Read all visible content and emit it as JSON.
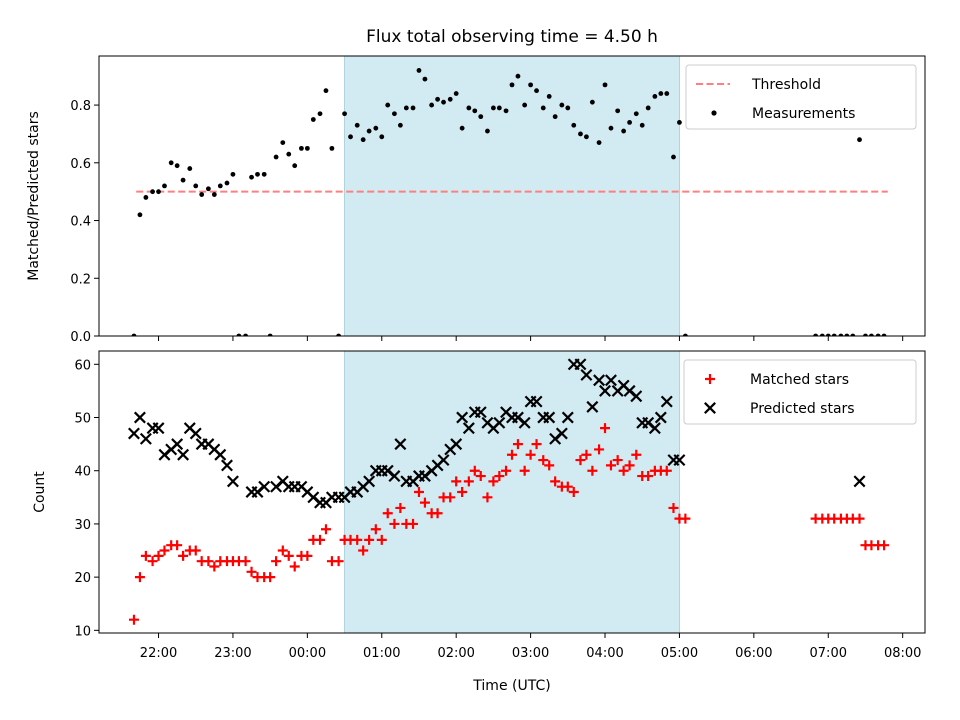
{
  "title": "Flux total observing time = 4.50 h",
  "shade": {
    "start": 0.5,
    "end": 5.0,
    "color": "#add8e6"
  },
  "chart_data": [
    {
      "type": "scatter",
      "ylabel": "Matched/Predicted stars",
      "xlim": [
        -2.8,
        8.3
      ],
      "ylim": [
        0,
        0.97
      ],
      "yticks": [
        0.0,
        0.2,
        0.4,
        0.6,
        0.8
      ],
      "ytick_labels": [
        "0.0",
        "0.2",
        "0.4",
        "0.6",
        "0.8"
      ],
      "legend_position": "upper right",
      "series": [
        {
          "name": "Threshold",
          "type": "line",
          "style": "dashed",
          "color": "#ff7f7f",
          "x": [
            -2.3,
            7.8
          ],
          "y": [
            0.5,
            0.5
          ]
        },
        {
          "name": "Measurements",
          "type": "scatter",
          "color": "#000000",
          "x": [
            -2.33,
            -2.25,
            -2.17,
            -2.08,
            -2.0,
            -1.92,
            -1.83,
            -1.75,
            -1.67,
            -1.58,
            -1.5,
            -1.42,
            -1.33,
            -1.25,
            -1.17,
            -1.08,
            -1.0,
            -0.92,
            -0.83,
            -0.75,
            -0.67,
            -0.58,
            -0.5,
            -0.42,
            -0.33,
            -0.25,
            -0.17,
            -0.08,
            0.0,
            0.08,
            0.17,
            0.25,
            0.33,
            0.42,
            0.5,
            0.58,
            0.67,
            0.75,
            0.83,
            0.92,
            1.0,
            1.08,
            1.17,
            1.25,
            1.33,
            1.42,
            1.5,
            1.58,
            1.67,
            1.75,
            1.83,
            1.92,
            2.0,
            2.08,
            2.17,
            2.25,
            2.33,
            2.42,
            2.5,
            2.58,
            2.67,
            2.75,
            2.83,
            2.92,
            3.0,
            3.08,
            3.17,
            3.25,
            3.33,
            3.42,
            3.5,
            3.58,
            3.67,
            3.75,
            3.83,
            3.92,
            4.0,
            4.08,
            4.17,
            4.25,
            4.33,
            4.42,
            4.5,
            4.58,
            4.67,
            4.75,
            4.83,
            4.92,
            5.0,
            5.08,
            6.83,
            6.92,
            7.0,
            7.08,
            7.17,
            7.25,
            7.33,
            7.42,
            7.5,
            7.58,
            7.67,
            7.75
          ],
          "y": [
            0.0,
            0.42,
            0.48,
            0.5,
            0.5,
            0.52,
            0.6,
            0.59,
            0.54,
            0.58,
            0.52,
            0.49,
            0.51,
            0.49,
            0.52,
            0.53,
            0.56,
            0.0,
            0.0,
            0.55,
            0.56,
            0.56,
            0.0,
            0.62,
            0.67,
            0.63,
            0.59,
            0.65,
            0.65,
            0.75,
            0.77,
            0.85,
            0.65,
            0.0,
            0.77,
            0.69,
            0.73,
            0.68,
            0.71,
            0.72,
            0.69,
            0.8,
            0.77,
            0.73,
            0.79,
            0.79,
            0.92,
            0.89,
            0.8,
            0.82,
            0.81,
            0.82,
            0.84,
            0.72,
            0.79,
            0.78,
            0.76,
            0.71,
            0.79,
            0.79,
            0.78,
            0.87,
            0.9,
            0.8,
            0.87,
            0.85,
            0.79,
            0.83,
            0.76,
            0.8,
            0.79,
            0.73,
            0.7,
            0.69,
            0.81,
            0.67,
            0.87,
            0.72,
            0.78,
            0.71,
            0.74,
            0.77,
            0.73,
            0.79,
            0.83,
            0.84,
            0.84,
            0.62,
            0.74,
            0.0,
            0.0,
            0.0,
            0.0,
            0.0,
            0.0,
            0.0,
            0.0,
            0.68,
            0.0,
            0.0,
            0.0,
            0.0
          ]
        }
      ]
    },
    {
      "type": "scatter",
      "xlabel": "Time (UTC)",
      "ylabel": "Count",
      "xlim": [
        -2.8,
        8.3
      ],
      "ylim": [
        9.5,
        62.5
      ],
      "xticks": [
        -2,
        -1,
        0,
        1,
        2,
        3,
        4,
        5,
        6,
        7,
        8
      ],
      "xtick_labels": [
        "22:00",
        "23:00",
        "00:00",
        "01:00",
        "02:00",
        "03:00",
        "04:00",
        "05:00",
        "06:00",
        "07:00",
        "08:00"
      ],
      "yticks": [
        10,
        20,
        30,
        40,
        50,
        60
      ],
      "ytick_labels": [
        "10",
        "20",
        "30",
        "40",
        "50",
        "60"
      ],
      "legend_position": "upper right",
      "series": [
        {
          "name": "Matched stars",
          "type": "scatter",
          "marker": "+",
          "color": "#ff0000",
          "x": [
            -2.33,
            -2.25,
            -2.17,
            -2.08,
            -2.0,
            -1.92,
            -1.83,
            -1.75,
            -1.67,
            -1.58,
            -1.5,
            -1.42,
            -1.33,
            -1.25,
            -1.17,
            -1.08,
            -1.0,
            -0.92,
            -0.83,
            -0.75,
            -0.67,
            -0.58,
            -0.5,
            -0.42,
            -0.33,
            -0.25,
            -0.17,
            -0.08,
            0.0,
            0.08,
            0.17,
            0.25,
            0.33,
            0.42,
            0.5,
            0.58,
            0.67,
            0.75,
            0.83,
            0.92,
            1.0,
            1.08,
            1.17,
            1.25,
            1.33,
            1.42,
            1.5,
            1.58,
            1.67,
            1.75,
            1.83,
            1.92,
            2.0,
            2.08,
            2.17,
            2.25,
            2.33,
            2.42,
            2.5,
            2.58,
            2.67,
            2.75,
            2.83,
            2.92,
            3.0,
            3.08,
            3.17,
            3.25,
            3.33,
            3.42,
            3.5,
            3.58,
            3.67,
            3.75,
            3.83,
            3.92,
            4.0,
            4.08,
            4.17,
            4.25,
            4.33,
            4.42,
            4.5,
            4.58,
            4.67,
            4.75,
            4.83,
            4.92,
            5.0,
            5.08,
            6.83,
            6.92,
            7.0,
            7.08,
            7.17,
            7.25,
            7.33,
            7.42,
            7.5,
            7.58,
            7.67,
            7.75
          ],
          "y": [
            12,
            20,
            24,
            23,
            24,
            25,
            26,
            26,
            24,
            25,
            25,
            23,
            23,
            22,
            23,
            23,
            23,
            23,
            23,
            21,
            20,
            20,
            20,
            23,
            25,
            24,
            22,
            24,
            24,
            27,
            27,
            29,
            23,
            23,
            27,
            27,
            27,
            25,
            27,
            29,
            27,
            32,
            30,
            33,
            30,
            30,
            36,
            34,
            32,
            32,
            35,
            35,
            38,
            36,
            38,
            40,
            39,
            35,
            38,
            39,
            40,
            43,
            45,
            40,
            43,
            45,
            42,
            41,
            38,
            37,
            37,
            36,
            42,
            43,
            40,
            44,
            48,
            41,
            42,
            40,
            41,
            43,
            39,
            39,
            40,
            40,
            40,
            33,
            31,
            31,
            31,
            31,
            31,
            31,
            31,
            31,
            31,
            31,
            26,
            26,
            26,
            26
          ]
        },
        {
          "name": "Predicted stars",
          "type": "scatter",
          "marker": "x",
          "color": "#000000",
          "x": [
            -2.33,
            -2.25,
            -2.17,
            -2.08,
            -2.0,
            -1.92,
            -1.83,
            -1.75,
            -1.67,
            -1.58,
            -1.5,
            -1.42,
            -1.33,
            -1.25,
            -1.17,
            -1.08,
            -1.0,
            -0.75,
            -0.67,
            -0.58,
            -0.42,
            -0.33,
            -0.25,
            -0.17,
            -0.08,
            0.0,
            0.08,
            0.17,
            0.25,
            0.33,
            0.42,
            0.5,
            0.58,
            0.67,
            0.75,
            0.83,
            0.92,
            1.0,
            1.08,
            1.17,
            1.25,
            1.33,
            1.42,
            1.5,
            1.58,
            1.67,
            1.75,
            1.83,
            1.92,
            2.0,
            2.08,
            2.17,
            2.25,
            2.33,
            2.42,
            2.5,
            2.58,
            2.67,
            2.75,
            2.83,
            2.92,
            3.0,
            3.08,
            3.17,
            3.25,
            3.33,
            3.42,
            3.5,
            3.58,
            3.67,
            3.75,
            3.83,
            3.92,
            4.0,
            4.08,
            4.17,
            4.25,
            4.33,
            4.42,
            4.5,
            4.58,
            4.67,
            4.75,
            4.83,
            4.92,
            5.0,
            7.42
          ],
          "y": [
            47,
            50,
            46,
            48,
            48,
            43,
            44,
            45,
            43,
            48,
            47,
            45,
            45,
            44,
            43,
            41,
            38,
            36,
            36,
            37,
            37,
            38,
            37,
            37,
            37,
            36,
            35,
            34,
            34,
            35,
            35,
            35,
            36,
            36,
            37,
            38,
            40,
            40,
            40,
            39,
            45,
            38,
            38,
            39,
            39,
            40,
            41,
            42,
            44,
            45,
            50,
            48,
            51,
            51,
            49,
            48,
            49,
            51,
            50,
            50,
            49,
            53,
            53,
            50,
            50,
            46,
            47,
            50,
            60,
            60,
            58,
            52,
            57,
            55,
            57,
            55,
            56,
            55,
            54,
            49,
            49,
            48,
            50,
            53,
            42,
            42,
            38
          ]
        }
      ]
    }
  ]
}
